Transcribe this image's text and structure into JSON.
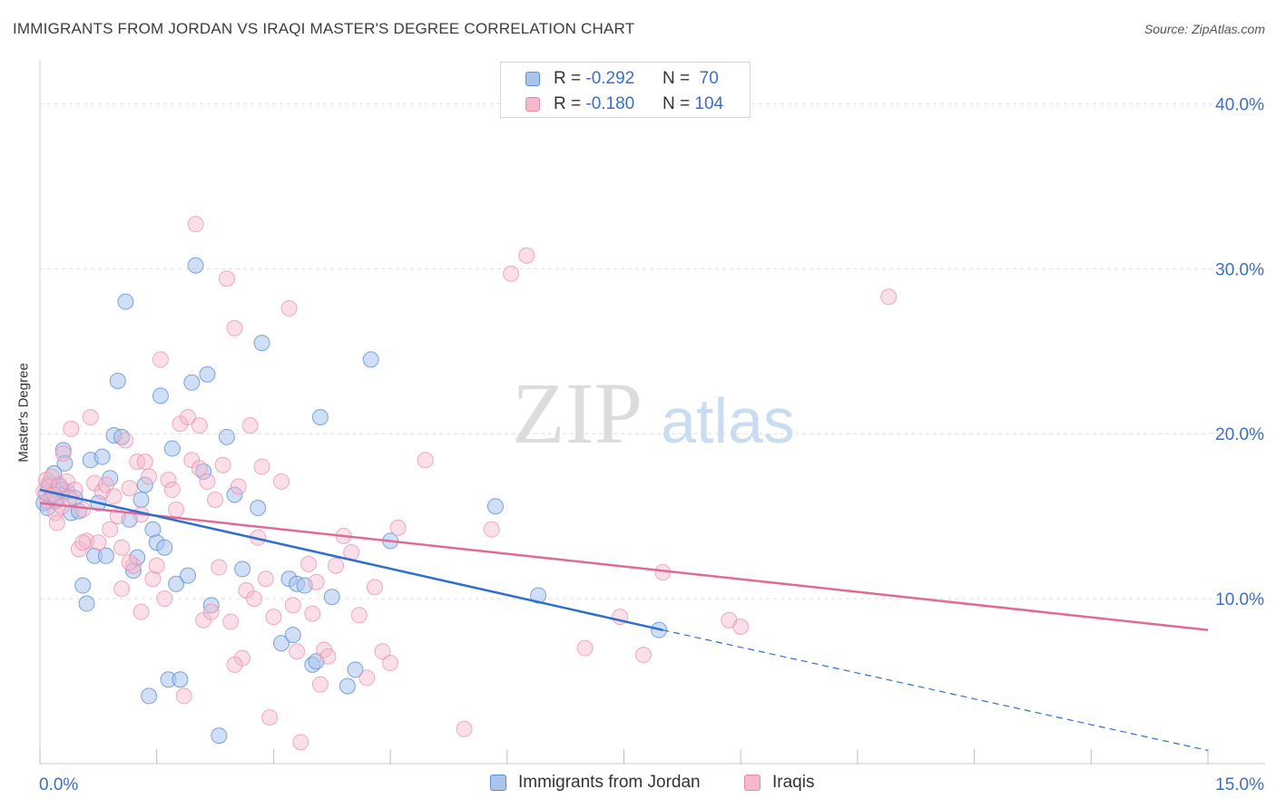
{
  "title": "IMMIGRANTS FROM JORDAN VS IRAQI MASTER'S DEGREE CORRELATION CHART",
  "source": "Source: ZipAtlas.com",
  "watermark": {
    "zip": "ZIP",
    "atlas": "atlas"
  },
  "colors": {
    "jordan_fill": "#aac4ec",
    "jordan_stroke": "#5b8fd6",
    "jordan_line": "#2f6fcc",
    "iraqi_fill": "#f5b9cb",
    "iraqi_stroke": "#e88aa8",
    "iraqi_line": "#e06a95",
    "axis_text": "#3a6fc4",
    "grid": "#dedede"
  },
  "legend_top": {
    "rows": [
      {
        "r_label": "R = ",
        "r_value": "-0.292",
        "n_label": "N = ",
        "n_value": " 70"
      },
      {
        "r_label": "R = ",
        "r_value": "-0.180",
        "n_label": "N = ",
        "n_value": "104"
      }
    ]
  },
  "legend_bottom": {
    "items": [
      {
        "label": "Immigrants from Jordan"
      },
      {
        "label": "Iraqis"
      }
    ]
  },
  "chart_data": {
    "type": "scatter",
    "title": "IMMIGRANTS FROM JORDAN VS IRAQI MASTER'S DEGREE CORRELATION CHART",
    "xlabel": "",
    "ylabel": "Master's Degree",
    "xlim": [
      0,
      15
    ],
    "ylim": [
      0,
      42
    ],
    "x_tick_labels": [
      "0.0%",
      "15.0%"
    ],
    "y_ticks": [
      10,
      20,
      30,
      40
    ],
    "y_tick_labels": [
      "10.0%",
      "20.0%",
      "30.0%",
      "40.0%"
    ],
    "grid": true,
    "legend_position": "top-center",
    "series": [
      {
        "name": "Immigrants from Jordan",
        "r": -0.292,
        "n": 70,
        "trend": {
          "x0": 0.0,
          "y0": 16.6,
          "x1": 8.0,
          "y1": 8.1,
          "dashed_to_x": 15.0,
          "dashed_to_y": 0.8
        },
        "points": [
          [
            0.05,
            15.8
          ],
          [
            0.08,
            16.4
          ],
          [
            0.1,
            15.5
          ],
          [
            0.12,
            17.0
          ],
          [
            0.15,
            16.2
          ],
          [
            0.18,
            17.6
          ],
          [
            0.2,
            15.9
          ],
          [
            0.25,
            16.8
          ],
          [
            0.3,
            19.0
          ],
          [
            0.32,
            18.2
          ],
          [
            0.35,
            16.5
          ],
          [
            0.4,
            15.2
          ],
          [
            0.45,
            16.1
          ],
          [
            0.5,
            15.3
          ],
          [
            0.55,
            10.8
          ],
          [
            0.6,
            9.7
          ],
          [
            0.65,
            18.4
          ],
          [
            0.7,
            12.6
          ],
          [
            0.75,
            15.8
          ],
          [
            0.8,
            18.6
          ],
          [
            0.85,
            12.6
          ],
          [
            0.9,
            17.3
          ],
          [
            0.95,
            19.9
          ],
          [
            1.0,
            23.2
          ],
          [
            1.05,
            19.8
          ],
          [
            1.1,
            28.0
          ],
          [
            1.15,
            14.8
          ],
          [
            1.2,
            11.7
          ],
          [
            1.25,
            12.5
          ],
          [
            1.3,
            16.0
          ],
          [
            1.35,
            16.9
          ],
          [
            1.4,
            4.1
          ],
          [
            1.45,
            14.2
          ],
          [
            1.5,
            13.4
          ],
          [
            1.55,
            22.3
          ],
          [
            1.6,
            13.1
          ],
          [
            1.65,
            5.1
          ],
          [
            1.7,
            19.1
          ],
          [
            1.75,
            10.9
          ],
          [
            1.8,
            5.1
          ],
          [
            1.9,
            11.4
          ],
          [
            1.95,
            23.1
          ],
          [
            2.0,
            30.2
          ],
          [
            2.1,
            17.7
          ],
          [
            2.15,
            23.6
          ],
          [
            2.2,
            9.6
          ],
          [
            2.3,
            1.7
          ],
          [
            2.4,
            19.8
          ],
          [
            2.5,
            16.3
          ],
          [
            2.6,
            11.8
          ],
          [
            2.8,
            15.5
          ],
          [
            2.85,
            25.5
          ],
          [
            3.1,
            7.3
          ],
          [
            3.2,
            11.2
          ],
          [
            3.25,
            7.8
          ],
          [
            3.3,
            10.9
          ],
          [
            3.4,
            10.8
          ],
          [
            3.5,
            6.0
          ],
          [
            3.55,
            6.2
          ],
          [
            3.6,
            21.0
          ],
          [
            3.75,
            10.1
          ],
          [
            3.95,
            4.7
          ],
          [
            4.05,
            5.7
          ],
          [
            4.25,
            24.5
          ],
          [
            4.5,
            13.5
          ],
          [
            5.85,
            15.6
          ],
          [
            6.4,
            10.2
          ],
          [
            7.95,
            8.1
          ],
          [
            0.22,
            16.0
          ],
          [
            0.28,
            16.6
          ]
        ]
      },
      {
        "name": "Iraqis",
        "r": -0.18,
        "n": 104,
        "trend": {
          "x0": 0.0,
          "y0": 15.8,
          "x1": 15.0,
          "y1": 8.1
        },
        "points": [
          [
            0.05,
            16.5
          ],
          [
            0.08,
            17.2
          ],
          [
            0.1,
            15.9
          ],
          [
            0.12,
            16.8
          ],
          [
            0.15,
            17.4
          ],
          [
            0.2,
            15.2
          ],
          [
            0.22,
            14.6
          ],
          [
            0.25,
            16.9
          ],
          [
            0.3,
            18.8
          ],
          [
            0.35,
            17.1
          ],
          [
            0.4,
            20.3
          ],
          [
            0.45,
            16.6
          ],
          [
            0.5,
            13.0
          ],
          [
            0.55,
            15.4
          ],
          [
            0.6,
            13.5
          ],
          [
            0.65,
            21.0
          ],
          [
            0.7,
            17.0
          ],
          [
            0.75,
            13.4
          ],
          [
            0.8,
            16.5
          ],
          [
            0.85,
            16.9
          ],
          [
            0.9,
            14.2
          ],
          [
            0.95,
            16.2
          ],
          [
            1.0,
            15.0
          ],
          [
            1.05,
            10.6
          ],
          [
            1.1,
            19.6
          ],
          [
            1.15,
            16.7
          ],
          [
            1.2,
            12.0
          ],
          [
            1.25,
            18.3
          ],
          [
            1.3,
            15.1
          ],
          [
            1.35,
            18.3
          ],
          [
            1.4,
            17.4
          ],
          [
            1.45,
            11.2
          ],
          [
            1.5,
            12.0
          ],
          [
            1.55,
            24.5
          ],
          [
            1.6,
            10.0
          ],
          [
            1.65,
            17.2
          ],
          [
            1.7,
            16.6
          ],
          [
            1.75,
            15.4
          ],
          [
            1.8,
            20.6
          ],
          [
            1.85,
            4.1
          ],
          [
            1.9,
            21.0
          ],
          [
            1.95,
            18.4
          ],
          [
            2.0,
            32.7
          ],
          [
            2.05,
            17.9
          ],
          [
            2.1,
            8.7
          ],
          [
            2.15,
            17.1
          ],
          [
            2.2,
            9.2
          ],
          [
            2.25,
            16.0
          ],
          [
            2.3,
            11.9
          ],
          [
            2.35,
            18.1
          ],
          [
            2.4,
            29.4
          ],
          [
            2.45,
            8.6
          ],
          [
            2.5,
            26.4
          ],
          [
            2.55,
            16.8
          ],
          [
            2.6,
            6.4
          ],
          [
            2.65,
            10.5
          ],
          [
            2.7,
            20.5
          ],
          [
            2.75,
            10.0
          ],
          [
            2.8,
            13.7
          ],
          [
            2.85,
            18.0
          ],
          [
            2.9,
            11.2
          ],
          [
            2.95,
            2.8
          ],
          [
            3.0,
            8.9
          ],
          [
            3.1,
            17.1
          ],
          [
            3.2,
            27.6
          ],
          [
            3.25,
            9.6
          ],
          [
            3.3,
            6.8
          ],
          [
            3.35,
            1.3
          ],
          [
            3.45,
            12.1
          ],
          [
            3.5,
            9.1
          ],
          [
            3.55,
            11.0
          ],
          [
            3.6,
            4.8
          ],
          [
            3.65,
            6.9
          ],
          [
            3.7,
            6.5
          ],
          [
            3.8,
            12.0
          ],
          [
            3.9,
            13.8
          ],
          [
            4.0,
            12.8
          ],
          [
            4.2,
            5.2
          ],
          [
            4.3,
            10.7
          ],
          [
            4.4,
            6.8
          ],
          [
            4.5,
            6.1
          ],
          [
            4.6,
            14.3
          ],
          [
            4.95,
            18.4
          ],
          [
            5.45,
            2.1
          ],
          [
            5.8,
            14.2
          ],
          [
            6.05,
            29.7
          ],
          [
            6.25,
            30.8
          ],
          [
            7.0,
            7.0
          ],
          [
            7.45,
            8.9
          ],
          [
            7.75,
            6.6
          ],
          [
            8.0,
            11.6
          ],
          [
            8.85,
            8.7
          ],
          [
            9.0,
            8.3
          ],
          [
            10.9,
            28.3
          ],
          [
            0.18,
            16.3
          ],
          [
            0.28,
            15.6
          ],
          [
            0.38,
            16.1
          ],
          [
            1.05,
            13.1
          ],
          [
            2.05,
            20.5
          ],
          [
            1.3,
            9.2
          ],
          [
            2.5,
            6.0
          ],
          [
            4.1,
            9.0
          ],
          [
            0.55,
            13.4
          ],
          [
            1.15,
            12.2
          ]
        ]
      }
    ]
  }
}
